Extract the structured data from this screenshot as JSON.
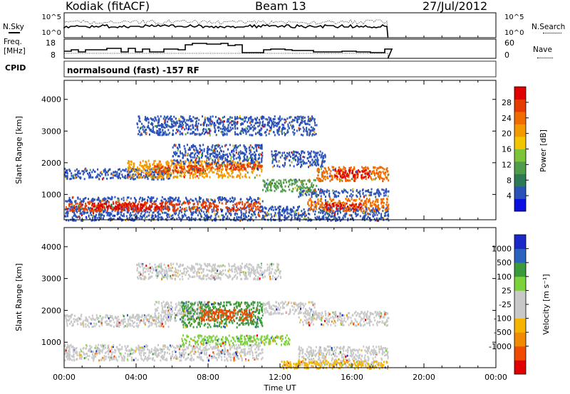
{
  "header": {
    "station": "Kodiak (fitACF)",
    "beam": "Beam 13",
    "date": "27/Jul/2012"
  },
  "summary": {
    "noise": {
      "left_label": "N.Sky",
      "right_label": "N.Search",
      "left_ticks": [
        "10^5",
        "10^0"
      ],
      "right_ticks": [
        "10^5",
        "10^0"
      ]
    },
    "freq": {
      "left_label_1": "Freq.",
      "left_label_2": "[MHz]",
      "right_label": "Nave",
      "left_ticks": [
        "18",
        "8"
      ],
      "right_ticks": [
        "60",
        "0"
      ]
    },
    "cpid": {
      "label": "CPID",
      "text": "normalsound (fast) -157 RF"
    }
  },
  "chart_data": [
    {
      "type": "heatmap",
      "name": "power",
      "ylabel": "Slant Range [km]",
      "xlabel": "",
      "yticks": [
        "1000",
        "2000",
        "3000",
        "4000"
      ],
      "ylim": [
        200,
        4600
      ],
      "colorbar": {
        "label": "Power [dB]",
        "ticks": [
          "28",
          "24",
          "20",
          "16",
          "12",
          "8",
          "4"
        ],
        "colors": [
          "#0a10e0",
          "#2a52b8",
          "#2c7a55",
          "#4f9d4a",
          "#7bc43b",
          "#f2c500",
          "#f29a00",
          "#f06b00",
          "#e63a00",
          "#e00000"
        ]
      },
      "bands": [
        {
          "t0": 0.0,
          "t1": 18.0,
          "r0": 330,
          "r1": 650,
          "color": "#2a52b8"
        },
        {
          "t0": 0.2,
          "t1": 11.0,
          "r0": 500,
          "r1": 800,
          "color": "#e63a00"
        },
        {
          "t0": 1.5,
          "t1": 5.5,
          "r0": 550,
          "r1": 750,
          "color": "#e00000"
        },
        {
          "t0": 0.0,
          "t1": 11.0,
          "r0": 800,
          "r1": 950,
          "color": "#2a52b8"
        },
        {
          "t0": 13.5,
          "t1": 18.0,
          "r0": 500,
          "r1": 900,
          "color": "#f06b00"
        },
        {
          "t0": 14.5,
          "t1": 16.5,
          "r0": 550,
          "r1": 750,
          "color": "#e00000"
        },
        {
          "t0": 13.0,
          "t1": 18.0,
          "r0": 950,
          "r1": 1200,
          "color": "#2a52b8"
        },
        {
          "t0": 0.0,
          "t1": 6.0,
          "r0": 1500,
          "r1": 1850,
          "color": "#2a52b8"
        },
        {
          "t0": 3.5,
          "t1": 11.0,
          "r0": 1550,
          "r1": 2100,
          "color": "#f29a00"
        },
        {
          "t0": 5.0,
          "t1": 8.0,
          "r0": 1700,
          "r1": 1950,
          "color": "#e63a00"
        },
        {
          "t0": 8.0,
          "t1": 11.0,
          "r0": 1800,
          "r1": 2000,
          "color": "#e63a00"
        },
        {
          "t0": 6.0,
          "t1": 11.0,
          "r0": 2000,
          "r1": 2600,
          "color": "#2a52b8"
        },
        {
          "t0": 11.5,
          "t1": 14.5,
          "r0": 1900,
          "r1": 2400,
          "color": "#2a52b8"
        },
        {
          "t0": 14.0,
          "t1": 18.0,
          "r0": 1450,
          "r1": 1900,
          "color": "#f06b00"
        },
        {
          "t0": 15.0,
          "t1": 17.0,
          "r0": 1550,
          "r1": 1800,
          "color": "#e00000"
        },
        {
          "t0": 4.0,
          "t1": 14.0,
          "r0": 2900,
          "r1": 3500,
          "color": "#2a52b8"
        },
        {
          "t0": 11.0,
          "t1": 14.0,
          "r0": 1100,
          "r1": 1500,
          "color": "#4f9d4a"
        },
        {
          "t0": 0.0,
          "t1": 18.0,
          "r0": 200,
          "r1": 330,
          "color": "#2a52b8"
        }
      ]
    },
    {
      "type": "heatmap",
      "name": "velocity",
      "ylabel": "Slant Range [km]",
      "xlabel": "Time UT",
      "xticks": [
        "00:00",
        "04:00",
        "08:00",
        "12:00",
        "16:00",
        "20:00",
        "00:00"
      ],
      "xlim": [
        0,
        24
      ],
      "yticks": [
        "1000",
        "2000",
        "3000",
        "4000"
      ],
      "ylim": [
        200,
        4600
      ],
      "colorbar": {
        "label": "Velocity [m s⁻¹]",
        "ticks": [
          "1000",
          "500",
          "100",
          "25",
          "-25",
          "-100",
          "-500",
          "-1000"
        ],
        "colors": [
          "#e00000",
          "#f04a00",
          "#f08a00",
          "#f6b400",
          "#c8c8c8",
          "#c8c8c8",
          "#7bd23a",
          "#3a9a3a",
          "#2a62c0",
          "#1a28c8"
        ]
      },
      "bands": [
        {
          "t0": 0.0,
          "t1": 11.0,
          "r0": 450,
          "r1": 950,
          "color": "#c8c8c8"
        },
        {
          "t0": 13.0,
          "t1": 18.0,
          "r0": 300,
          "r1": 900,
          "color": "#c8c8c8"
        },
        {
          "t0": 0.0,
          "t1": 6.0,
          "r0": 1500,
          "r1": 1900,
          "color": "#c8c8c8"
        },
        {
          "t0": 5.0,
          "t1": 8.0,
          "r0": 1700,
          "r1": 2300,
          "color": "#c8c8c8"
        },
        {
          "t0": 6.5,
          "t1": 11.0,
          "r0": 1500,
          "r1": 2300,
          "color": "#3a9a3a"
        },
        {
          "t0": 7.5,
          "t1": 10.5,
          "r0": 1700,
          "r1": 2050,
          "color": "#f04a00"
        },
        {
          "t0": 6.5,
          "t1": 12.5,
          "r0": 950,
          "r1": 1250,
          "color": "#7bd23a"
        },
        {
          "t0": 13.0,
          "t1": 18.0,
          "r0": 1550,
          "r1": 2000,
          "color": "#c8c8c8"
        },
        {
          "t0": 11.0,
          "t1": 14.0,
          "r0": 1900,
          "r1": 2300,
          "color": "#c8c8c8"
        },
        {
          "t0": 12.0,
          "t1": 18.0,
          "r0": 200,
          "r1": 450,
          "color": "#f6b400"
        },
        {
          "t0": 4.0,
          "t1": 12.0,
          "r0": 3000,
          "r1": 3500,
          "color": "#c8c8c8"
        }
      ]
    }
  ]
}
